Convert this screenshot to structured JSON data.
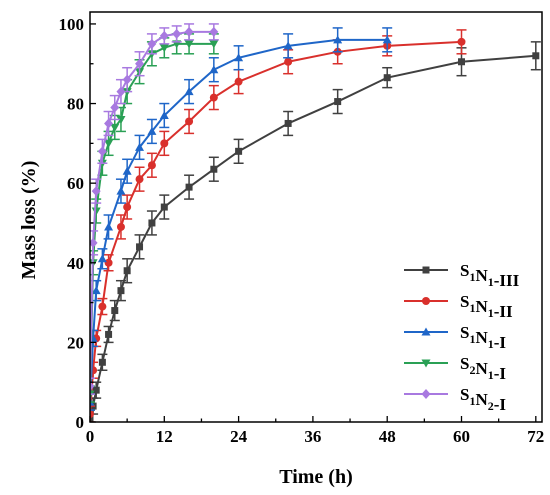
{
  "chart_data": {
    "type": "line",
    "xlabel": "Time (h)",
    "ylabel": "Mass loss (%)",
    "xlim": [
      0,
      73
    ],
    "ylim": [
      0,
      103
    ],
    "xticks": [
      0,
      12,
      24,
      36,
      48,
      60,
      72
    ],
    "yticks": [
      0,
      20,
      40,
      60,
      80,
      100
    ],
    "legend_position": "lower-right",
    "grid": false,
    "series": [
      {
        "name": "S1N1-III",
        "label_parts": [
          [
            "S",
            "1"
          ],
          [
            "N",
            "1"
          ],
          [
            "-III",
            ""
          ]
        ],
        "color": "#404040",
        "marker": "square",
        "x": [
          0,
          0.5,
          1,
          2,
          3,
          4,
          5,
          6,
          8,
          10,
          12,
          16,
          20,
          24,
          32,
          40,
          48,
          60,
          72
        ],
        "y": [
          1,
          4,
          8,
          15,
          22,
          28,
          33,
          38,
          44,
          50,
          54,
          59,
          63.5,
          68,
          75,
          80.5,
          86.5,
          90.5,
          92
        ],
        "err": [
          2,
          2,
          2,
          2,
          2,
          2.5,
          2.5,
          3,
          3,
          3,
          3,
          3,
          3,
          3,
          3,
          3,
          2.5,
          3.5,
          3.5
        ]
      },
      {
        "name": "S1N1-II",
        "label_parts": [
          [
            "S",
            "1"
          ],
          [
            "N",
            "1"
          ],
          [
            "-II",
            ""
          ]
        ],
        "color": "#d9302c",
        "marker": "circle",
        "x": [
          0,
          0.5,
          1,
          2,
          3,
          5,
          6,
          8,
          10,
          12,
          16,
          20,
          24,
          32,
          40,
          48,
          60
        ],
        "y": [
          2,
          13,
          21,
          29,
          40,
          49,
          54,
          61,
          64.5,
          70,
          75.5,
          81.5,
          85.5,
          90.5,
          93,
          94.5,
          95.5
        ],
        "err": [
          2,
          2,
          2,
          2,
          2,
          3,
          3,
          3,
          3,
          3,
          3,
          3,
          3,
          3,
          3,
          2.5,
          3
        ]
      },
      {
        "name": "S1N1-I",
        "label_parts": [
          [
            "S",
            "1"
          ],
          [
            "N",
            "1"
          ],
          [
            "-I",
            ""
          ]
        ],
        "color": "#1f66c8",
        "marker": "triangle-up",
        "x": [
          0,
          0.5,
          1,
          2,
          3,
          5,
          6,
          8,
          10,
          12,
          16,
          20,
          24,
          32,
          40,
          48
        ],
        "y": [
          5,
          21,
          33,
          41,
          49,
          58,
          63,
          69,
          73,
          77,
          83,
          88.5,
          91.5,
          94.5,
          96,
          96
        ],
        "err": [
          2,
          2,
          2.5,
          2.5,
          3,
          3,
          3,
          3,
          3,
          3,
          3,
          3,
          3,
          3,
          3,
          3
        ]
      },
      {
        "name": "S2N1-I",
        "label_parts": [
          [
            "S",
            "2"
          ],
          [
            "N",
            "1"
          ],
          [
            "-I",
            ""
          ]
        ],
        "color": "#2aa055",
        "marker": "triangle-down",
        "x": [
          0,
          0.5,
          1,
          2,
          3,
          4,
          5,
          6,
          8,
          10,
          12,
          14,
          16,
          20
        ],
        "y": [
          7,
          40,
          53,
          65,
          70,
          74,
          76,
          83,
          88,
          92.5,
          94,
          95,
          95,
          95
        ],
        "err": [
          2,
          3,
          3,
          3,
          3,
          3,
          3,
          3,
          3,
          3,
          2.5,
          2.5,
          2.5,
          2.5
        ]
      },
      {
        "name": "S1N2-I",
        "label_parts": [
          [
            "S",
            "1"
          ],
          [
            "N",
            "2"
          ],
          [
            "-I",
            ""
          ]
        ],
        "color": "#a879e0",
        "marker": "diamond",
        "x": [
          0,
          0.5,
          1,
          2,
          3,
          4,
          5,
          6,
          8,
          10,
          12,
          14,
          16,
          20
        ],
        "y": [
          9,
          45,
          58,
          68,
          75,
          79,
          83,
          86,
          90,
          95,
          97,
          97.5,
          98,
          98
        ],
        "err": [
          2,
          3,
          3,
          3,
          3,
          3,
          3,
          3,
          3,
          2.5,
          2,
          2,
          2,
          2
        ]
      }
    ]
  }
}
